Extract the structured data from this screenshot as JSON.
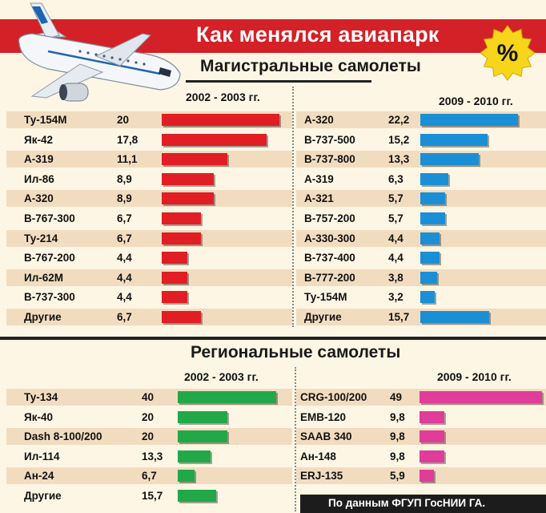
{
  "title": "Как менялся авиапарк",
  "badge": "%",
  "source": "По данным ФГУП ГосНИИ ГА.",
  "colors": {
    "red": "#e01e24",
    "blue": "#1b8fd6",
    "green": "#21a848",
    "pink": "#e03c9a"
  },
  "chart_data": [
    {
      "type": "bar",
      "section": "Магистральные самолеты",
      "period": "2002 - 2003 гг.",
      "orientation": "horizontal",
      "categories": [
        "Ту-154М",
        "Як-42",
        "А-319",
        "Ил-86",
        "А-320",
        "B-767-300",
        "Ту-214",
        "B-767-200",
        "Ил-62М",
        "B-737-300",
        "Другие"
      ],
      "values": [
        20,
        17.8,
        11.1,
        8.9,
        8.9,
        6.7,
        6.7,
        4.4,
        4.4,
        4.4,
        6.7
      ],
      "labels": [
        "20",
        "17,8",
        "11,1",
        "8,9",
        "8,9",
        "6,7",
        "6,7",
        "4,4",
        "4,4",
        "4,4",
        "6,7"
      ],
      "color": "#e01e24"
    },
    {
      "type": "bar",
      "section": "Магистральные самолеты",
      "period": "2009 - 2010 гг.",
      "orientation": "horizontal",
      "categories": [
        "А-320",
        "B-737-500",
        "B-737-800",
        "А-319",
        "А-321",
        "B-757-200",
        "А-330-300",
        "B-737-400",
        "B-777-200",
        "Ту-154М",
        "Другие"
      ],
      "values": [
        22.2,
        15.2,
        13.3,
        6.3,
        5.7,
        5.7,
        4.4,
        4.4,
        3.8,
        3.2,
        15.7
      ],
      "labels": [
        "22,2",
        "15,2",
        "13,3",
        "6,3",
        "5,7",
        "5,7",
        "4,4",
        "4,4",
        "3,8",
        "3,2",
        "15,7"
      ],
      "color": "#1b8fd6"
    },
    {
      "type": "bar",
      "section": "Региональные самолеты",
      "period": "2002 - 2003 гг.",
      "orientation": "horizontal",
      "categories": [
        "Ту-134",
        "Як-40",
        "Dash 8-100/200",
        "Ил-114",
        "Ан-24",
        "Другие"
      ],
      "values": [
        40,
        20,
        20,
        13.3,
        6.7,
        15.7
      ],
      "labels": [
        "40",
        "20",
        "20",
        "13,3",
        "6,7",
        "15,7"
      ],
      "color": "#21a848"
    },
    {
      "type": "bar",
      "section": "Региональные самолеты",
      "period": "2009 - 2010 гг.",
      "orientation": "horizontal",
      "categories": [
        "CRG-100/200",
        "EMB-120",
        "SAAB 340",
        "Ан-148",
        "ERJ-135"
      ],
      "values": [
        49,
        9.8,
        9.8,
        9.8,
        5.9
      ],
      "labels": [
        "49",
        "9,8",
        "9,8",
        "9,8",
        "5,9"
      ],
      "color": "#e03c9a"
    }
  ]
}
